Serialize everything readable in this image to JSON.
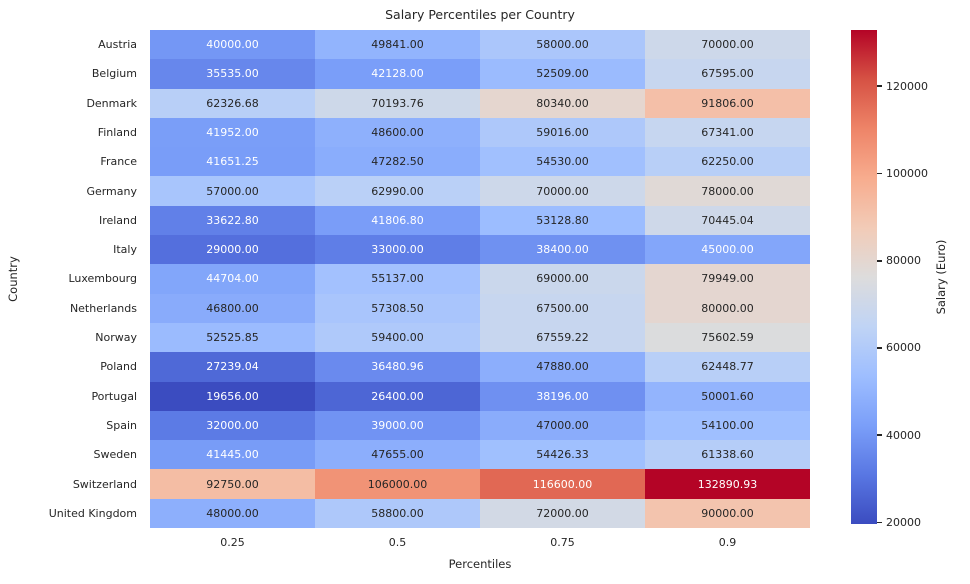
{
  "chart_data": {
    "type": "heatmap",
    "title": "Salary Percentiles per Country",
    "xlabel": "Percentiles",
    "ylabel": "Country",
    "colorbar_label": "Salary (Euro)",
    "columns": [
      "0.25",
      "0.5",
      "0.75",
      "0.9"
    ],
    "rows": [
      "Austria",
      "Belgium",
      "Denmark",
      "Finland",
      "France",
      "Germany",
      "Ireland",
      "Italy",
      "Luxembourg",
      "Netherlands",
      "Norway",
      "Poland",
      "Portugal",
      "Spain",
      "Sweden",
      "Switzerland",
      "United Kingdom"
    ],
    "values": [
      [
        40000.0,
        49841.0,
        58000.0,
        70000.0
      ],
      [
        35535.0,
        42128.0,
        52509.0,
        67595.0
      ],
      [
        62326.68,
        70193.76,
        80340.0,
        91806.0
      ],
      [
        41952.0,
        48600.0,
        59016.0,
        67341.0
      ],
      [
        41651.25,
        47282.5,
        54530.0,
        62250.0
      ],
      [
        57000.0,
        62990.0,
        70000.0,
        78000.0
      ],
      [
        33622.8,
        41806.8,
        53128.8,
        70445.04
      ],
      [
        29000.0,
        33000.0,
        38400.0,
        45000.0
      ],
      [
        44704.0,
        55137.0,
        69000.0,
        79949.0
      ],
      [
        46800.0,
        57308.5,
        67500.0,
        80000.0
      ],
      [
        52525.85,
        59400.0,
        67559.22,
        75602.59
      ],
      [
        27239.04,
        36480.96,
        47880.0,
        62448.77
      ],
      [
        19656.0,
        26400.0,
        38196.0,
        50001.6
      ],
      [
        32000.0,
        39000.0,
        47000.0,
        54100.0
      ],
      [
        41445.0,
        47655.0,
        54426.33,
        61338.6
      ],
      [
        92750.0,
        106000.0,
        116600.0,
        132890.93
      ],
      [
        48000.0,
        58800.0,
        72000.0,
        90000.0
      ]
    ],
    "value_decimals": 2,
    "vmin": 19656.0,
    "vmax": 132890.93,
    "colormap": "coolwarm",
    "colormap_stops": [
      "#3b4cc0",
      "#5977e3",
      "#7b9ff9",
      "#9ebeff",
      "#c0d4f5",
      "#dddcdc",
      "#f2cbb7",
      "#f7ac8e",
      "#ee8468",
      "#d65244",
      "#b40426"
    ],
    "annotation_text_dark": "#262626",
    "annotation_text_light": "#ffffff",
    "colorbar_ticks": [
      20000,
      40000,
      60000,
      80000,
      100000,
      120000
    ],
    "grid": false,
    "legend_position": "right-colorbar"
  }
}
